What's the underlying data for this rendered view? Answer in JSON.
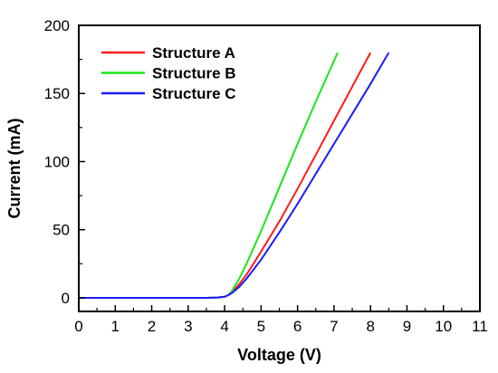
{
  "chart_data": {
    "type": "line",
    "title": "",
    "xlabel": "Voltage (V)",
    "ylabel": "Current (mA)",
    "xlim": [
      0,
      11
    ],
    "ylim": [
      -10,
      200
    ],
    "x_ticks": [
      0,
      1,
      2,
      3,
      4,
      5,
      6,
      7,
      8,
      9,
      10,
      11
    ],
    "y_ticks": [
      0,
      50,
      100,
      150,
      200
    ],
    "grid": false,
    "legend_position": "top-left",
    "series": [
      {
        "name": "Structure A",
        "color": "#ff1a1a",
        "x": [
          0,
          1,
          2,
          3,
          3.5,
          3.8,
          4.0,
          4.1,
          4.2,
          4.4,
          4.6,
          5.0,
          5.5,
          6.0,
          6.5,
          7.0,
          7.5,
          8.0
        ],
        "y": [
          0,
          0,
          0,
          0,
          0,
          0.2,
          0.8,
          2,
          4,
          10,
          17,
          34,
          56,
          80,
          105,
          130,
          155,
          180
        ]
      },
      {
        "name": "Structure B",
        "color": "#1ae61a",
        "x": [
          0,
          1,
          2,
          3,
          3.5,
          3.8,
          4.0,
          4.1,
          4.2,
          4.4,
          4.6,
          5.0,
          5.5,
          6.0,
          6.5,
          7.0,
          7.1
        ],
        "y": [
          0,
          0,
          0,
          0,
          0,
          0.2,
          0.8,
          2,
          5,
          14,
          25,
          49,
          81,
          113,
          144,
          174,
          180
        ]
      },
      {
        "name": "Structure C",
        "color": "#1a1aff",
        "x": [
          0,
          1,
          2,
          3,
          3.5,
          3.8,
          4.0,
          4.1,
          4.2,
          4.4,
          4.6,
          5.0,
          5.5,
          6.0,
          6.5,
          7.0,
          7.5,
          8.0,
          8.5
        ],
        "y": [
          0,
          0,
          0,
          0,
          0,
          0.2,
          0.8,
          2,
          3.5,
          8,
          14,
          28,
          48,
          69,
          91,
          113,
          135,
          157,
          180
        ]
      }
    ]
  }
}
